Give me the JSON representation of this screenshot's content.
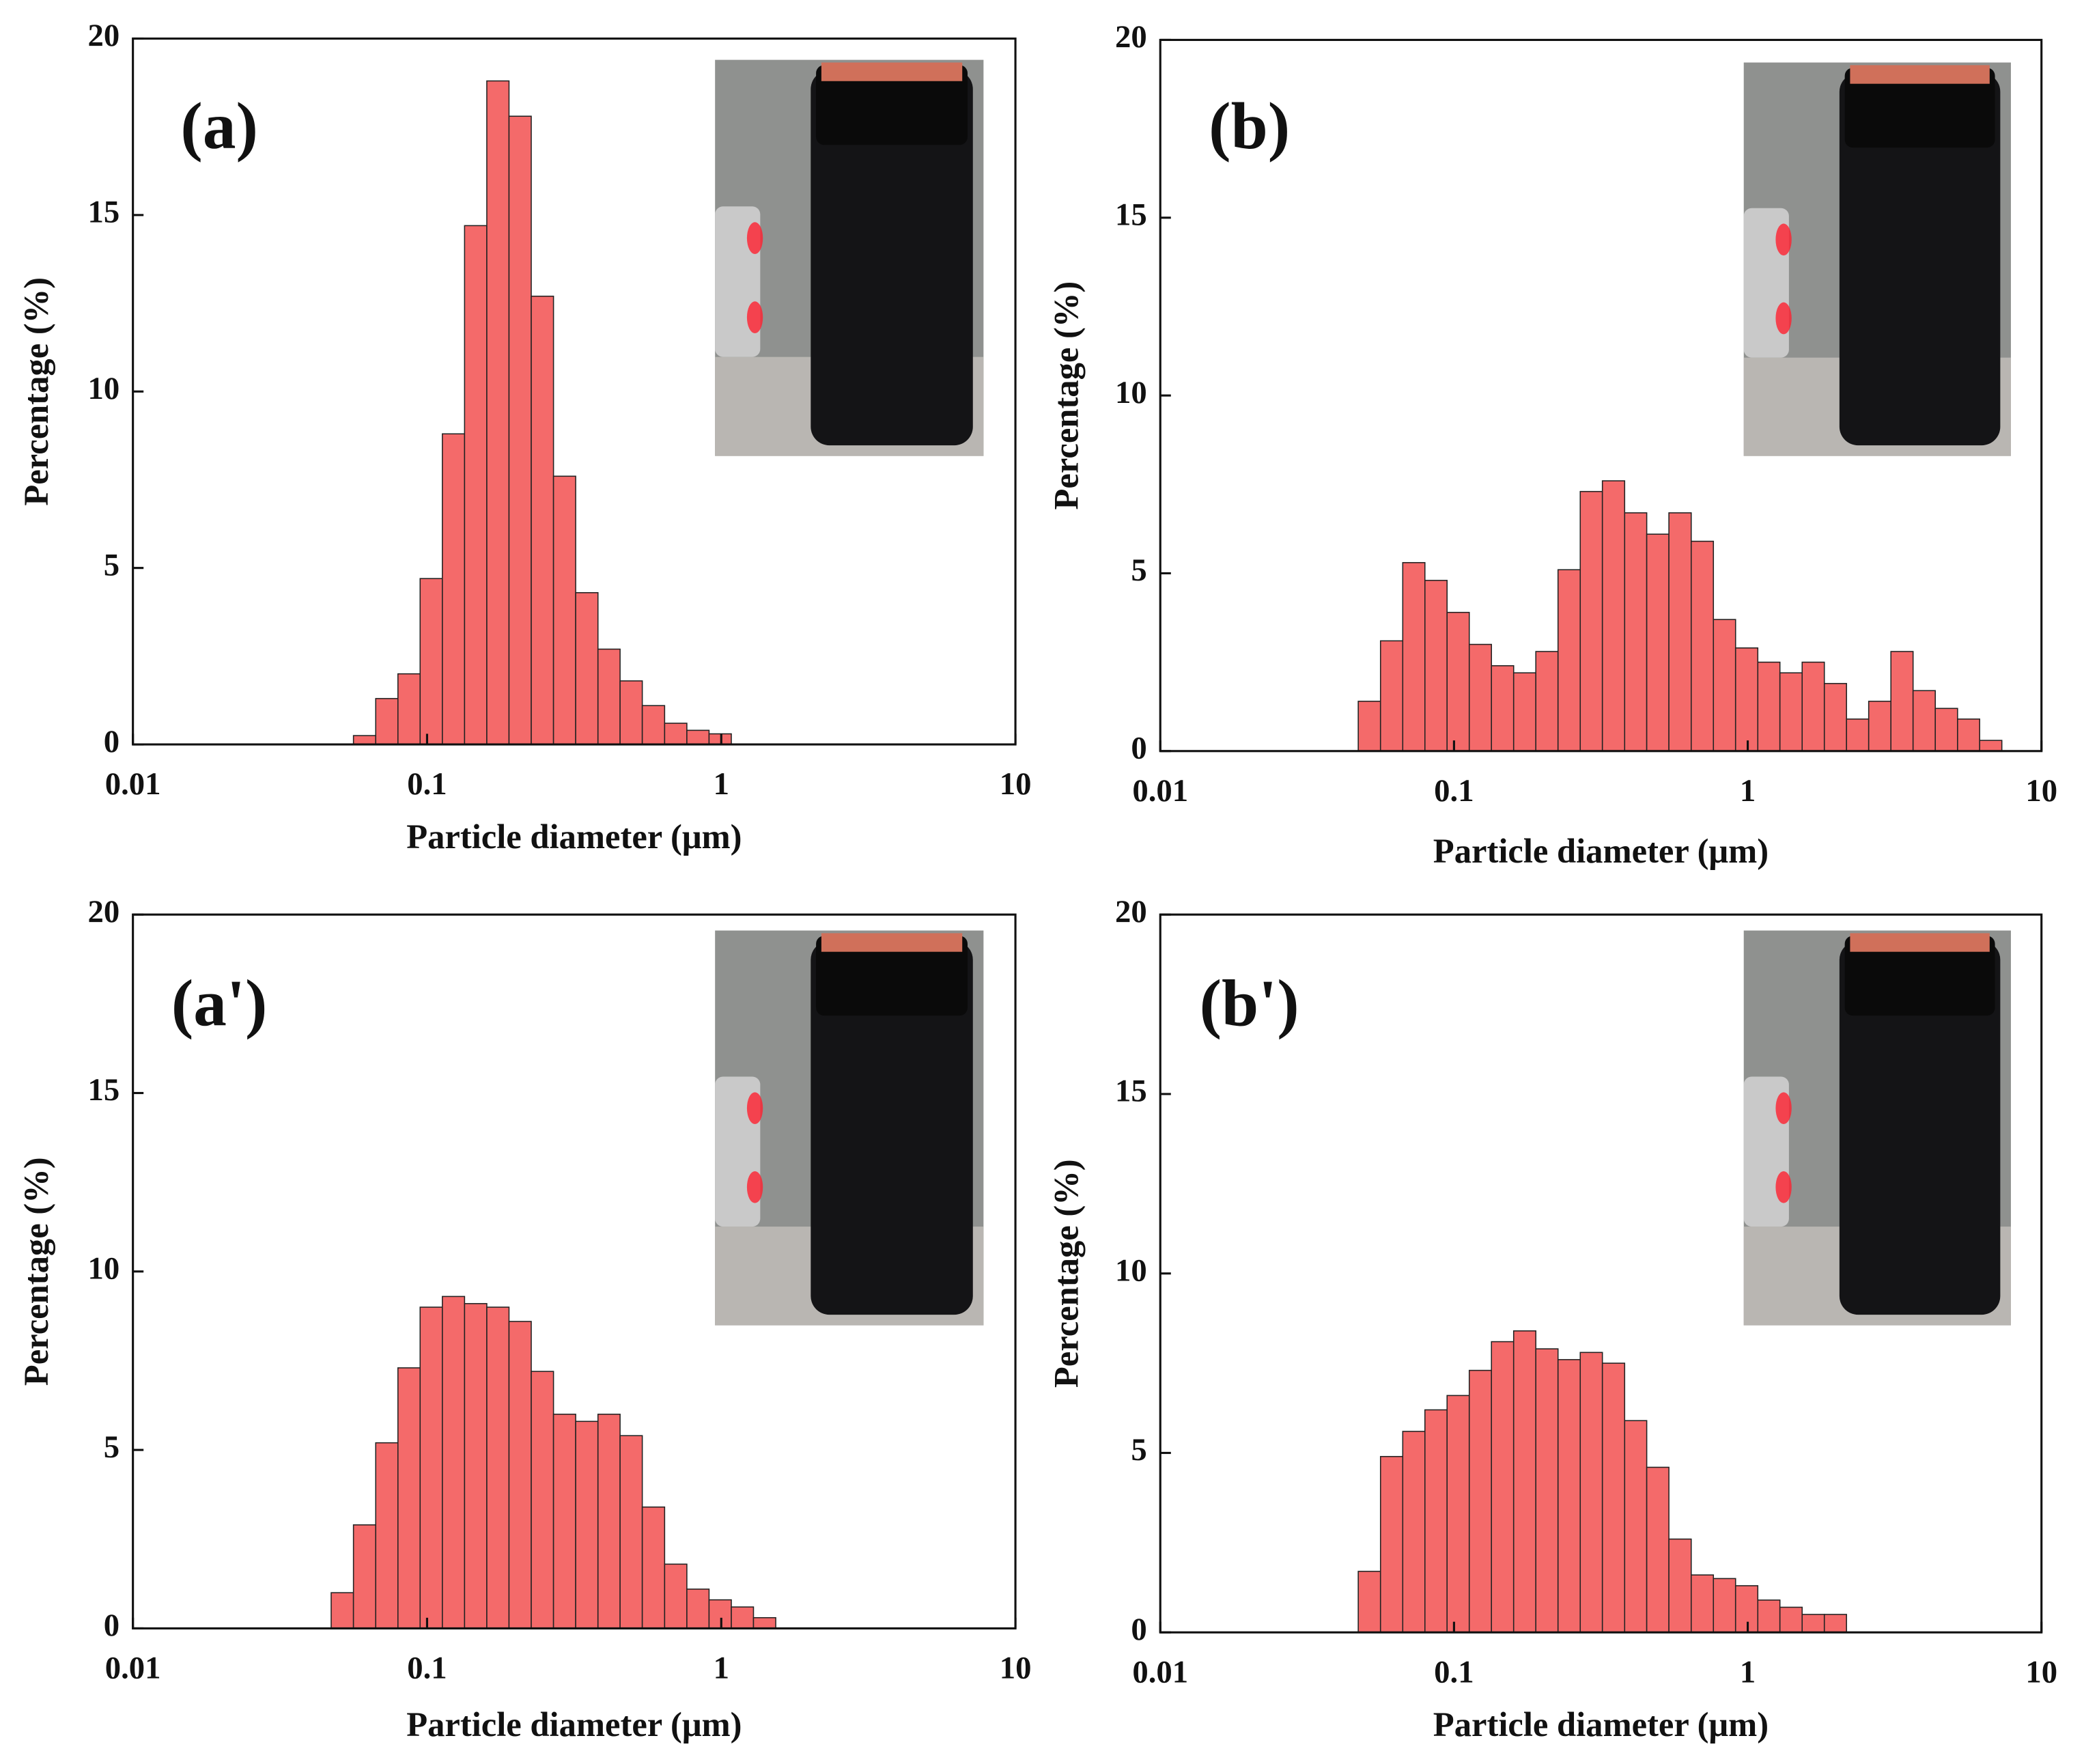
{
  "chart_data": [
    {
      "type": "histogram",
      "annotation": "(a)",
      "xlabel": "Particle diameter (μm)",
      "ylabel": "Percentage (%)",
      "log_x": true,
      "color": "#f46a6a",
      "xlim": [
        0.01,
        10
      ],
      "xticks": [
        0.01,
        0.1,
        1,
        10
      ],
      "ylim": [
        0,
        20
      ],
      "yticks": [
        0,
        5,
        10,
        15,
        20
      ],
      "bins": [
        0.0562,
        0.0669,
        0.0796,
        0.0947,
        0.1127,
        0.1341,
        0.1596,
        0.1899,
        0.226,
        0.269,
        0.32,
        0.381,
        0.453,
        0.539,
        0.642,
        0.764,
        0.909,
        1.082
      ],
      "values": [
        0.25,
        1.3,
        2.0,
        4.7,
        8.8,
        14.7,
        18.8,
        17.8,
        12.7,
        7.6,
        4.3,
        2.7,
        1.8,
        1.1,
        0.6,
        0.4,
        0.3
      ]
    },
    {
      "type": "histogram",
      "annotation": "(b)",
      "xlabel": "Particle diameter (μm)",
      "ylabel": "Percentage (%)",
      "log_x": true,
      "color": "#f46a6a",
      "xlim": [
        0.01,
        10
      ],
      "xticks": [
        0.01,
        0.1,
        1,
        10
      ],
      "ylim": [
        0,
        20
      ],
      "yticks": [
        0,
        5,
        10,
        15,
        20
      ],
      "bins": [
        0.0472,
        0.0562,
        0.0669,
        0.0796,
        0.0947,
        0.1127,
        0.1341,
        0.1596,
        0.1899,
        0.226,
        0.269,
        0.32,
        0.381,
        0.453,
        0.539,
        0.642,
        0.764,
        0.909,
        1.082,
        1.287,
        1.532,
        1.823,
        2.169,
        2.581,
        3.072,
        3.655,
        4.35,
        5.18,
        6.16,
        7.33
      ],
      "values": [
        1.4,
        3.1,
        5.3,
        4.8,
        3.9,
        3.0,
        2.4,
        2.2,
        2.8,
        5.1,
        7.3,
        7.6,
        6.7,
        6.1,
        6.7,
        5.9,
        3.7,
        2.9,
        2.5,
        2.2,
        2.5,
        1.9,
        0.9,
        1.4,
        2.8,
        1.7,
        1.2,
        0.9,
        0.3
      ]
    },
    {
      "type": "histogram",
      "annotation": "(a')",
      "xlabel": "Particle diameter (μm)",
      "ylabel": "Percentage (%)",
      "log_x": true,
      "color": "#f46a6a",
      "xlim": [
        0.01,
        10
      ],
      "xticks": [
        0.01,
        0.1,
        1,
        10
      ],
      "ylim": [
        0,
        20
      ],
      "yticks": [
        0,
        5,
        10,
        15,
        20
      ],
      "bins": [
        0.0472,
        0.0562,
        0.0669,
        0.0796,
        0.0947,
        0.1127,
        0.1341,
        0.1596,
        0.1899,
        0.226,
        0.269,
        0.32,
        0.381,
        0.453,
        0.539,
        0.642,
        0.764,
        0.909,
        1.082,
        1.287,
        1.532
      ],
      "values": [
        1.0,
        2.9,
        5.2,
        7.3,
        9.0,
        9.3,
        9.1,
        9.0,
        8.6,
        7.2,
        6.0,
        5.8,
        6.0,
        5.4,
        3.4,
        1.8,
        1.1,
        0.8,
        0.6,
        0.3
      ]
    },
    {
      "type": "histogram",
      "annotation": "(b')",
      "xlabel": "Particle diameter (μm)",
      "ylabel": "Percentage (%)",
      "log_x": true,
      "color": "#f46a6a",
      "xlim": [
        0.01,
        10
      ],
      "xticks": [
        0.01,
        0.1,
        1,
        10
      ],
      "ylim": [
        0,
        20
      ],
      "yticks": [
        0,
        5,
        10,
        15,
        20
      ],
      "bins": [
        0.0472,
        0.0562,
        0.0669,
        0.0796,
        0.0947,
        0.1127,
        0.1341,
        0.1596,
        0.1899,
        0.226,
        0.269,
        0.32,
        0.381,
        0.453,
        0.539,
        0.642,
        0.764,
        0.909,
        1.082,
        1.287,
        1.532,
        1.823,
        2.169
      ],
      "values": [
        1.7,
        4.9,
        5.6,
        6.2,
        6.6,
        7.3,
        8.1,
        8.4,
        7.9,
        7.6,
        7.8,
        7.5,
        5.9,
        4.6,
        2.6,
        1.6,
        1.5,
        1.3,
        0.9,
        0.7,
        0.5,
        0.5
      ]
    }
  ]
}
